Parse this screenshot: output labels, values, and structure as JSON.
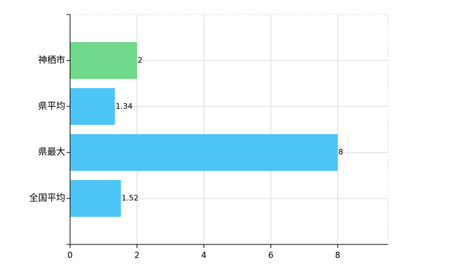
{
  "chart_data": {
    "type": "bar",
    "orientation": "horizontal",
    "categories": [
      "神栖市",
      "県平均",
      "県最大",
      "全国平均"
    ],
    "values": [
      2,
      1.34,
      8,
      1.52
    ],
    "colors": [
      "#6fd88a",
      "#4cc4f5",
      "#4cc4f5",
      "#4cc4f5"
    ],
    "xlim": [
      0,
      9.5
    ],
    "xticks": [
      0,
      2,
      4,
      6,
      8
    ],
    "grid": true
  }
}
